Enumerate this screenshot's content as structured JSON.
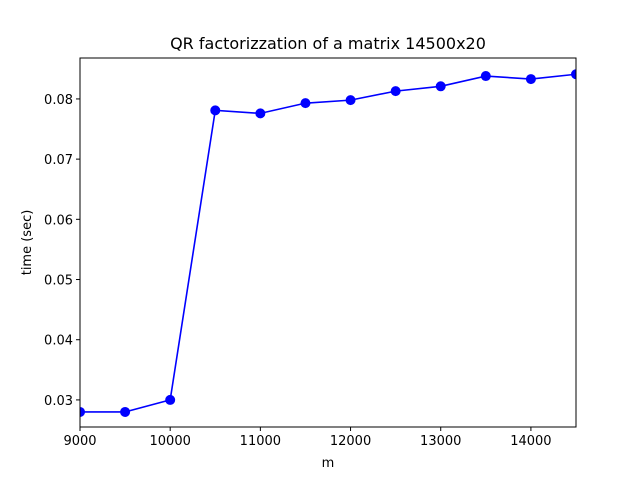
{
  "chart_data": {
    "type": "line",
    "title": "QR factorizzation of a matrix 14500x20",
    "xlabel": "m",
    "ylabel": "time (sec)",
    "xlim": [
      9000,
      14500
    ],
    "ylim": [
      0.0255,
      0.0868
    ],
    "grid": false,
    "xticks": [
      9000,
      10000,
      11000,
      12000,
      13000,
      14000
    ],
    "yticks": [
      0.03,
      0.04,
      0.05,
      0.06,
      0.07,
      0.08
    ],
    "xtick_labels": [
      "9000",
      "10000",
      "11000",
      "12000",
      "13000",
      "14000"
    ],
    "ytick_labels": [
      "0.03",
      "0.04",
      "0.05",
      "0.06",
      "0.07",
      "0.08"
    ],
    "series": [
      {
        "color": "#0000ff",
        "marker": "circle",
        "x": [
          9000,
          9500,
          10000,
          10500,
          11000,
          11500,
          12000,
          12500,
          13000,
          13500,
          14000,
          14500
        ],
        "y": [
          0.028,
          0.028,
          0.03,
          0.0781,
          0.0776,
          0.0793,
          0.0798,
          0.0813,
          0.0821,
          0.0838,
          0.0833,
          0.0841
        ]
      }
    ]
  }
}
